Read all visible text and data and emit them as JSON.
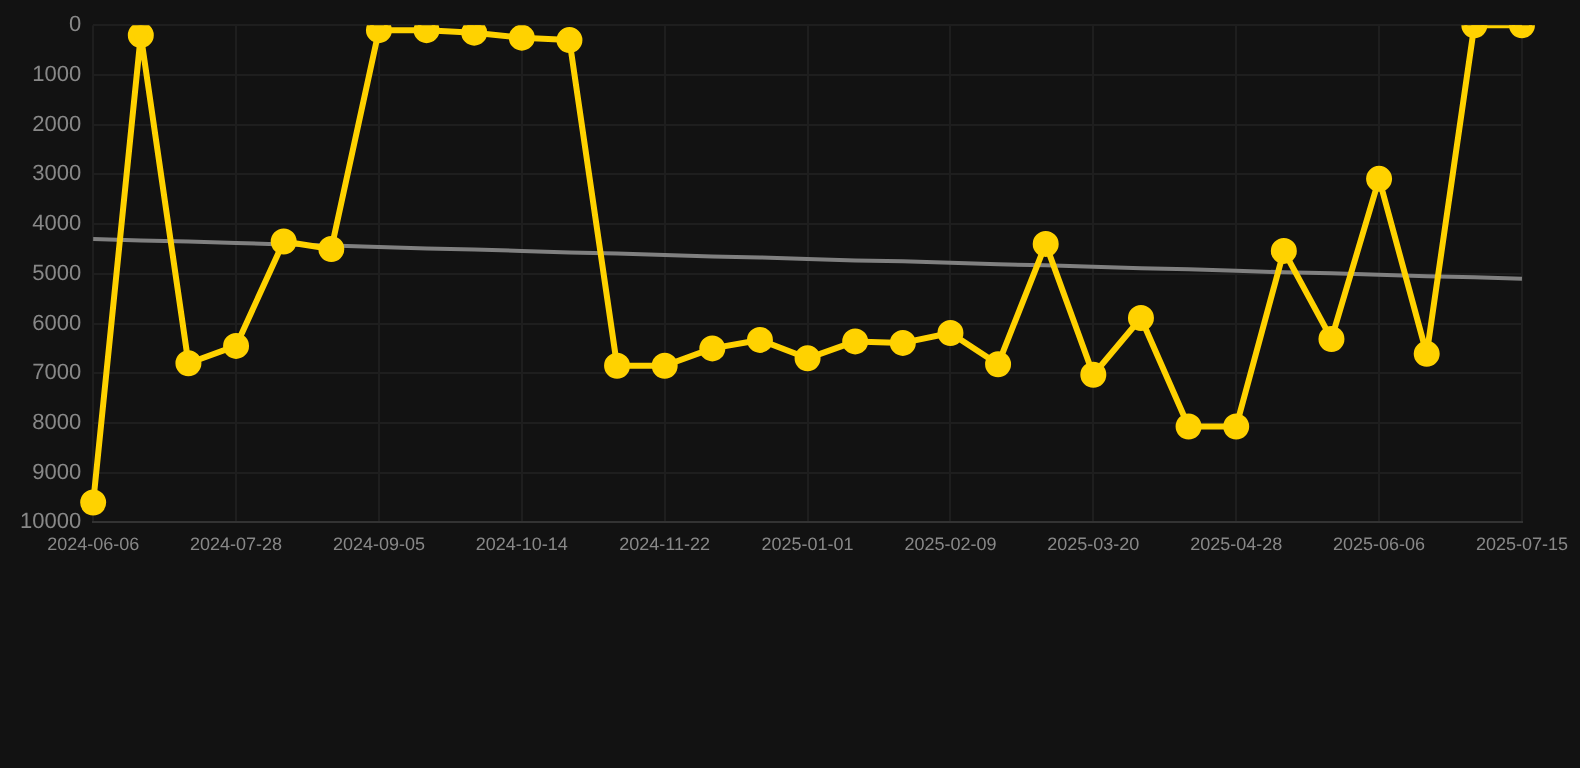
{
  "chart_data": {
    "type": "line",
    "categories": [
      "2024-06-06",
      null,
      null,
      "2024-07-28",
      null,
      null,
      "2024-09-05",
      null,
      null,
      "2024-10-14",
      null,
      null,
      "2024-11-22",
      null,
      null,
      "2025-01-01",
      null,
      null,
      "2025-02-09",
      null,
      null,
      "2025-03-20",
      null,
      null,
      "2025-04-28",
      null,
      null,
      "2025-06-06",
      null,
      null,
      "2025-07-15"
    ],
    "series": [
      {
        "color": "#ffd200",
        "marker": "circle",
        "values": [
          9600,
          200,
          6800,
          6450,
          4350,
          4500,
          100,
          100,
          150,
          250,
          300,
          6850,
          6850,
          6500,
          6330,
          6700,
          6360,
          6390,
          6190,
          6820,
          4400,
          7030,
          5890,
          8070,
          8070,
          4540,
          6310,
          3090,
          6610,
          0,
          0
        ]
      },
      {
        "type": "line",
        "color": "#808080",
        "marker": "none",
        "values": [
          4300,
          4330,
          4350,
          4380,
          4410,
          4430,
          4460,
          4490,
          4510,
          4540,
          4570,
          4590,
          4620,
          4650,
          4670,
          4700,
          4730,
          4750,
          4780,
          4810,
          4830,
          4860,
          4890,
          4910,
          4940,
          4970,
          4990,
          5020,
          5050,
          5070,
          5100
        ]
      }
    ],
    "ylim": [
      10000,
      0
    ],
    "yticks": [
      0,
      1000,
      2000,
      3000,
      4000,
      5000,
      6000,
      7000,
      8000,
      9000,
      10000
    ],
    "grid": true,
    "legend": false
  }
}
